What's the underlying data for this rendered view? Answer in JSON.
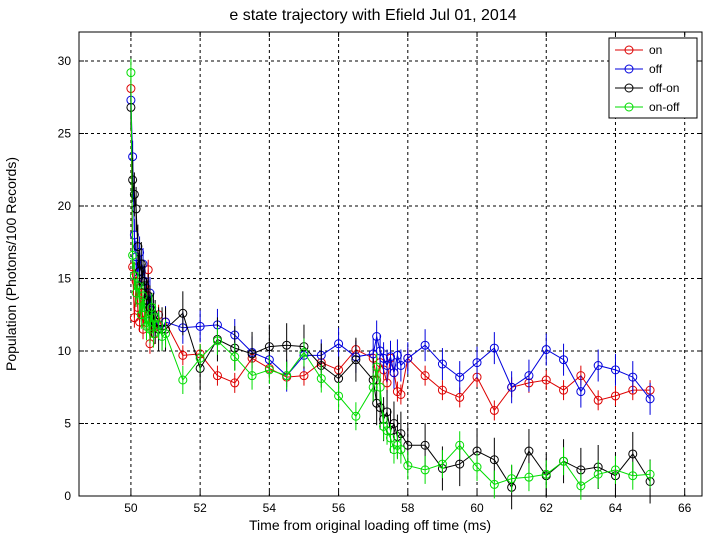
{
  "chart_data": {
    "type": "line",
    "title": "e state trajectory with Efield      Jul 01, 2014",
    "xlabel": "Time from original loading off time (ms)",
    "ylabel": "Population (Photons/100 Records)",
    "xlim": [
      48.5,
      66.5
    ],
    "ylim": [
      0,
      32
    ],
    "xticks": [
      50,
      52,
      54,
      56,
      58,
      60,
      62,
      64,
      66
    ],
    "yticks": [
      0,
      5,
      10,
      15,
      20,
      25,
      30
    ],
    "grid": true,
    "legend_position": "top-right",
    "series": [
      {
        "name": "on",
        "color": "#dd0000",
        "x": [
          50.0,
          50.05,
          50.1,
          50.15,
          50.2,
          50.25,
          50.3,
          50.35,
          50.4,
          50.45,
          50.5,
          50.55,
          50.6,
          50.65,
          50.7,
          50.8,
          50.9,
          51.0,
          51.5,
          52.0,
          52.5,
          53.0,
          53.5,
          54.0,
          54.5,
          55.0,
          55.5,
          56.0,
          56.5,
          57.0,
          57.1,
          57.2,
          57.3,
          57.4,
          57.5,
          57.6,
          57.7,
          57.8,
          58.0,
          58.5,
          59.0,
          59.5,
          60.0,
          60.5,
          61.0,
          61.5,
          62.0,
          62.5,
          63.0,
          63.5,
          64.0,
          64.5,
          65.0
        ],
        "y": [
          28.1,
          15.8,
          12.3,
          14.8,
          13.0,
          12.0,
          14.5,
          11.5,
          13.0,
          12.2,
          15.6,
          10.5,
          12.0,
          11.8,
          11.2,
          12.5,
          11.5,
          12.0,
          9.7,
          9.8,
          8.3,
          7.8,
          9.5,
          8.8,
          8.2,
          8.3,
          9.2,
          8.7,
          10.1,
          9.5,
          8.0,
          9.2,
          8.7,
          7.8,
          9.5,
          8.5,
          7.2,
          7.0,
          9.5,
          8.3,
          7.3,
          6.8,
          8.2,
          5.9,
          7.5,
          7.8,
          8.0,
          7.3,
          8.3,
          6.6,
          6.9,
          7.3,
          7.3
        ]
      },
      {
        "name": "off",
        "color": "#0000dd",
        "x": [
          50.0,
          50.05,
          50.1,
          50.15,
          50.2,
          50.25,
          50.3,
          50.35,
          50.4,
          50.45,
          50.5,
          50.55,
          50.6,
          50.65,
          50.7,
          50.8,
          50.9,
          51.0,
          51.5,
          52.0,
          52.5,
          53.0,
          53.5,
          54.0,
          54.5,
          55.0,
          55.5,
          56.0,
          56.5,
          57.0,
          57.1,
          57.2,
          57.3,
          57.4,
          57.5,
          57.6,
          57.7,
          57.8,
          58.0,
          58.5,
          59.0,
          59.5,
          60.0,
          60.5,
          61.0,
          61.5,
          62.0,
          62.5,
          63.0,
          63.5,
          64.0,
          64.5,
          65.0
        ],
        "y": [
          27.3,
          23.4,
          18.0,
          16.5,
          15.0,
          16.8,
          15.5,
          16.0,
          14.8,
          13.5,
          13.0,
          14.0,
          12.8,
          12.5,
          12.0,
          11.8,
          11.5,
          12.0,
          11.6,
          11.7,
          11.8,
          11.1,
          9.9,
          9.4,
          8.3,
          9.7,
          9.7,
          10.5,
          9.6,
          9.8,
          11.0,
          10.0,
          9.5,
          9.0,
          9.6,
          8.5,
          9.7,
          9.0,
          9.5,
          10.4,
          9.1,
          8.2,
          9.2,
          10.2,
          7.5,
          8.3,
          10.1,
          9.4,
          7.2,
          9.0,
          8.7,
          8.2,
          6.7
        ]
      },
      {
        "name": "off-on",
        "color": "#000000",
        "x": [
          50.0,
          50.05,
          50.1,
          50.15,
          50.2,
          50.25,
          50.3,
          50.35,
          50.4,
          50.45,
          50.5,
          50.55,
          50.6,
          50.65,
          50.7,
          50.8,
          50.9,
          51.0,
          51.5,
          52.0,
          52.5,
          53.0,
          53.5,
          54.0,
          54.5,
          55.0,
          55.5,
          56.0,
          56.5,
          57.0,
          57.1,
          57.2,
          57.3,
          57.4,
          57.5,
          57.6,
          57.7,
          57.8,
          58.0,
          58.5,
          59.0,
          59.5,
          60.0,
          60.5,
          61.0,
          61.5,
          62.0,
          62.5,
          63.0,
          63.5,
          64.0,
          64.5,
          65.0
        ],
        "y": [
          26.8,
          21.8,
          20.8,
          19.8,
          17.2,
          15.5,
          16.0,
          14.8,
          14.5,
          13.5,
          13.8,
          13.0,
          12.5,
          12.5,
          12.0,
          11.5,
          11.5,
          11.5,
          12.6,
          8.8,
          10.8,
          10.2,
          9.8,
          10.3,
          10.4,
          10.3,
          9.0,
          8.1,
          9.4,
          8.0,
          6.4,
          6.1,
          5.3,
          5.8,
          4.5,
          5.0,
          4.1,
          4.3,
          3.5,
          3.5,
          1.9,
          2.2,
          3.1,
          2.5,
          0.6,
          3.1,
          1.4,
          2.4,
          1.8,
          2.0,
          1.4,
          2.9,
          1.0
        ]
      },
      {
        "name": "on-off",
        "color": "#00dd00",
        "x": [
          50.0,
          50.05,
          50.1,
          50.15,
          50.2,
          50.25,
          50.3,
          50.35,
          50.4,
          50.45,
          50.5,
          50.55,
          50.6,
          50.65,
          50.7,
          50.8,
          50.9,
          51.0,
          51.5,
          52.0,
          52.5,
          53.0,
          53.5,
          54.0,
          54.5,
          55.0,
          55.5,
          56.0,
          56.5,
          57.0,
          57.1,
          57.2,
          57.3,
          57.4,
          57.5,
          57.6,
          57.7,
          57.8,
          58.0,
          58.5,
          59.0,
          59.5,
          60.0,
          60.5,
          61.0,
          61.5,
          62.0,
          62.5,
          63.0,
          63.5,
          64.0,
          64.5,
          65.0
        ],
        "y": [
          29.2,
          16.6,
          15.2,
          14.0,
          14.5,
          13.5,
          12.5,
          13.8,
          12.5,
          11.7,
          12.2,
          11.5,
          13.0,
          11.2,
          12.3,
          11.8,
          11.0,
          11.2,
          8.0,
          9.5,
          10.7,
          9.6,
          8.3,
          8.7,
          8.3,
          9.9,
          8.1,
          6.9,
          5.5,
          7.5,
          8.9,
          7.5,
          4.8,
          4.5,
          4.0,
          3.2,
          3.5,
          3.2,
          2.1,
          1.8,
          2.2,
          3.5,
          2.0,
          0.8,
          1.2,
          1.3,
          1.5,
          2.4,
          0.7,
          1.5,
          1.8,
          1.4,
          1.5
        ]
      }
    ]
  }
}
